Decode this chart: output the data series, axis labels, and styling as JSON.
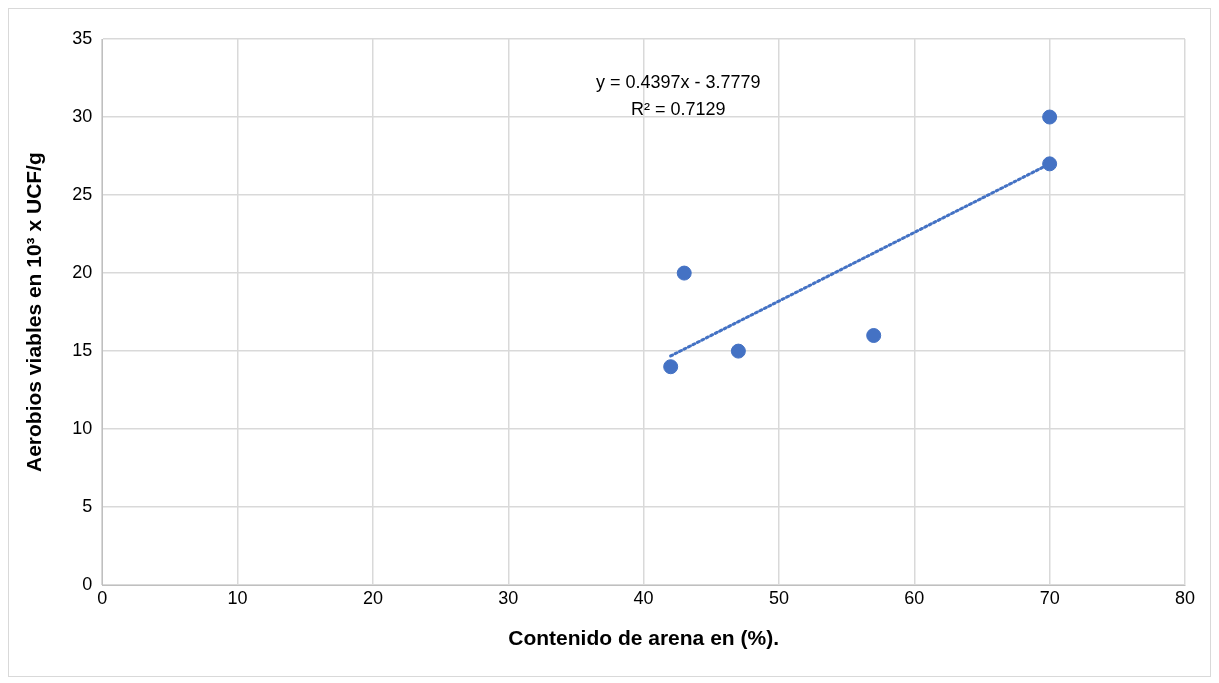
{
  "chart_data": {
    "type": "scatter",
    "xlabel": "Contenido de arena en (%).",
    "ylabel": "Aerobios viables en 10³ x UCF/g",
    "annotations": [
      "y = 0.4397x - 3.7779",
      "R² = 0.7129"
    ],
    "series": [
      {
        "type": "scatter",
        "color": "#4472c4",
        "marker": "circle",
        "x": [
          42,
          43,
          47,
          57,
          70,
          70
        ],
        "values": [
          14,
          20,
          15,
          16,
          30,
          27
        ]
      },
      {
        "type": "line",
        "color": "#4472c4",
        "marker": "none",
        "line_style": "dotted",
        "x": [
          42,
          70
        ],
        "values": [
          14.69,
          27.0
        ]
      }
    ],
    "xlim": [
      0,
      80
    ],
    "xticks": [
      0,
      10,
      20,
      30,
      40,
      50,
      60,
      70,
      80
    ],
    "ylim": [
      0,
      35
    ],
    "yticks": [
      0,
      5,
      10,
      15,
      20,
      25,
      30,
      35
    ],
    "grid": true,
    "legend": false
  }
}
